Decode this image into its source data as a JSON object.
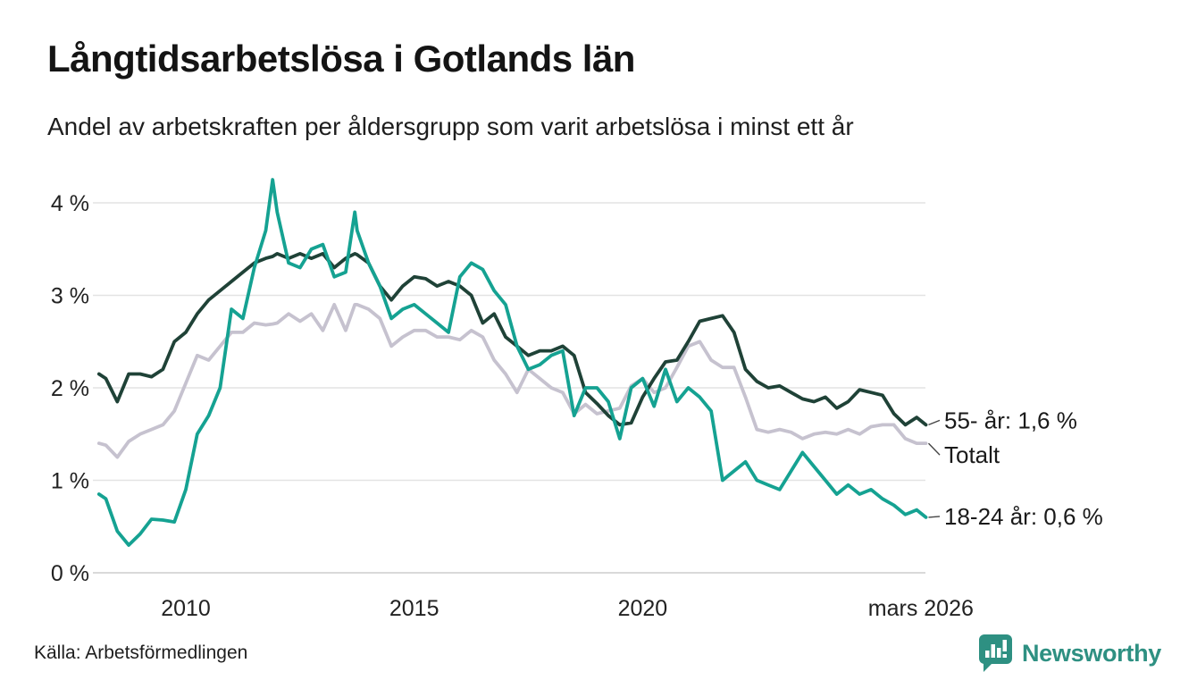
{
  "header": {
    "title": "Långtidsarbetslösa i Gotlands län",
    "subtitle": "Andel av arbetskraften per åldersgrupp som varit arbetslösa i minst ett år"
  },
  "footer": {
    "source": "Källa: Arbetsförmedlingen",
    "brand": "Newsworthy"
  },
  "colors": {
    "series_55": "#1f4237",
    "series_total": "#c6c2cf",
    "series_1824": "#15a292",
    "grid": "#e3e3e3",
    "baseline": "#d9d9d9",
    "axis_text": "#222222",
    "annotation_text": "#1a1a1a",
    "connector": "#444444",
    "brand_teal": "#2e9082"
  },
  "chart_data": {
    "type": "line",
    "title": "Långtidsarbetslösa i Gotlands län",
    "subtitle": "Andel av arbetskraften per åldersgrupp som varit arbetslösa i minst ett år",
    "x_unit": "decimal year (monthly share of labour force, %)",
    "grid": true,
    "legend_position": "right-end-labels",
    "ylim": [
      0,
      4.35
    ],
    "xlim": [
      2008.1,
      2026.2
    ],
    "x": [
      2008.1,
      2008.25,
      2008.5,
      2008.75,
      2009.0,
      2009.25,
      2009.5,
      2009.75,
      2010.0,
      2010.25,
      2010.5,
      2010.75,
      2011.0,
      2011.25,
      2011.5,
      2011.75,
      2011.9,
      2012.0,
      2012.25,
      2012.5,
      2012.75,
      2013.0,
      2013.25,
      2013.5,
      2013.7,
      2013.75,
      2014.0,
      2014.25,
      2014.5,
      2014.75,
      2015.0,
      2015.25,
      2015.5,
      2015.75,
      2016.0,
      2016.25,
      2016.5,
      2016.75,
      2017.0,
      2017.25,
      2017.5,
      2017.75,
      2018.0,
      2018.25,
      2018.5,
      2018.75,
      2019.0,
      2019.25,
      2019.5,
      2019.75,
      2020.0,
      2020.25,
      2020.5,
      2020.75,
      2021.0,
      2021.25,
      2021.5,
      2021.75,
      2022.0,
      2022.25,
      2022.5,
      2022.75,
      2023.0,
      2023.25,
      2023.5,
      2023.75,
      2024.0,
      2024.25,
      2024.5,
      2024.75,
      2025.0,
      2025.25,
      2025.5,
      2025.75,
      2026.0,
      2026.2
    ],
    "series": [
      {
        "name": "55- år",
        "label": "55- år: 1,6 %",
        "latest": "1,6 %",
        "color": "#1f4237",
        "values": [
          2.15,
          2.1,
          1.85,
          2.15,
          2.15,
          2.12,
          2.2,
          2.5,
          2.6,
          2.8,
          2.95,
          3.05,
          3.15,
          3.25,
          3.35,
          3.4,
          3.42,
          3.45,
          3.4,
          3.45,
          3.4,
          3.45,
          3.3,
          3.4,
          3.45,
          3.44,
          3.35,
          3.1,
          2.95,
          3.1,
          3.2,
          3.18,
          3.1,
          3.15,
          3.1,
          3.0,
          2.7,
          2.8,
          2.55,
          2.45,
          2.35,
          2.4,
          2.4,
          2.45,
          2.35,
          1.95,
          1.83,
          1.7,
          1.6,
          1.62,
          1.9,
          2.1,
          2.28,
          2.3,
          2.5,
          2.72,
          2.75,
          2.78,
          2.6,
          2.2,
          2.07,
          2.0,
          2.02,
          1.95,
          1.88,
          1.85,
          1.9,
          1.78,
          1.85,
          1.98,
          1.95,
          1.92,
          1.72,
          1.6,
          1.68,
          1.6
        ]
      },
      {
        "name": "Totalt",
        "label": "Totalt",
        "latest": "1,4 %",
        "color": "#c6c2cf",
        "values": [
          1.4,
          1.38,
          1.25,
          1.42,
          1.5,
          1.55,
          1.6,
          1.75,
          2.05,
          2.35,
          2.3,
          2.45,
          2.6,
          2.6,
          2.7,
          2.68,
          2.69,
          2.7,
          2.8,
          2.72,
          2.8,
          2.62,
          2.9,
          2.62,
          2.9,
          2.9,
          2.85,
          2.75,
          2.45,
          2.55,
          2.62,
          2.62,
          2.55,
          2.55,
          2.52,
          2.62,
          2.55,
          2.3,
          2.15,
          1.95,
          2.2,
          2.1,
          2.0,
          1.95,
          1.72,
          1.82,
          1.72,
          1.75,
          1.78,
          2.02,
          2.1,
          1.95,
          2.0,
          2.22,
          2.45,
          2.5,
          2.3,
          2.22,
          2.22,
          1.9,
          1.55,
          1.52,
          1.55,
          1.52,
          1.45,
          1.5,
          1.52,
          1.5,
          1.55,
          1.5,
          1.58,
          1.6,
          1.6,
          1.45,
          1.4,
          1.4
        ]
      },
      {
        "name": "18-24 år",
        "label": "18-24 år: 0,6 %",
        "latest": "0,6 %",
        "color": "#15a292",
        "values": [
          0.85,
          0.8,
          0.45,
          0.3,
          0.42,
          0.58,
          0.57,
          0.55,
          0.9,
          1.5,
          1.7,
          2.0,
          2.85,
          2.75,
          3.3,
          3.7,
          4.25,
          3.9,
          3.35,
          3.3,
          3.5,
          3.55,
          3.2,
          3.25,
          3.9,
          3.7,
          3.35,
          3.1,
          2.75,
          2.85,
          2.9,
          2.8,
          2.7,
          2.6,
          3.2,
          3.35,
          3.28,
          3.05,
          2.9,
          2.45,
          2.2,
          2.25,
          2.35,
          2.4,
          1.7,
          2.0,
          2.0,
          1.85,
          1.45,
          2.0,
          2.1,
          1.8,
          2.2,
          1.85,
          2.0,
          1.9,
          1.75,
          1.0,
          1.1,
          1.2,
          1.0,
          0.95,
          0.9,
          1.1,
          1.3,
          1.15,
          1.0,
          0.85,
          0.95,
          0.85,
          0.9,
          0.8,
          0.73,
          0.63,
          0.68,
          0.6
        ]
      }
    ],
    "yticks": [
      {
        "label": "4 %",
        "value": 4
      },
      {
        "label": "3 %",
        "value": 3
      },
      {
        "label": "2 %",
        "value": 2
      },
      {
        "label": "1 %",
        "value": 1
      },
      {
        "label": "0 %",
        "value": 0
      }
    ],
    "xticks": [
      {
        "label": "2010",
        "value": 2010
      },
      {
        "label": "2015",
        "value": 2015
      },
      {
        "label": "2020",
        "value": 2020
      },
      {
        "label": "mars 2026",
        "value": 2026.09
      }
    ]
  }
}
